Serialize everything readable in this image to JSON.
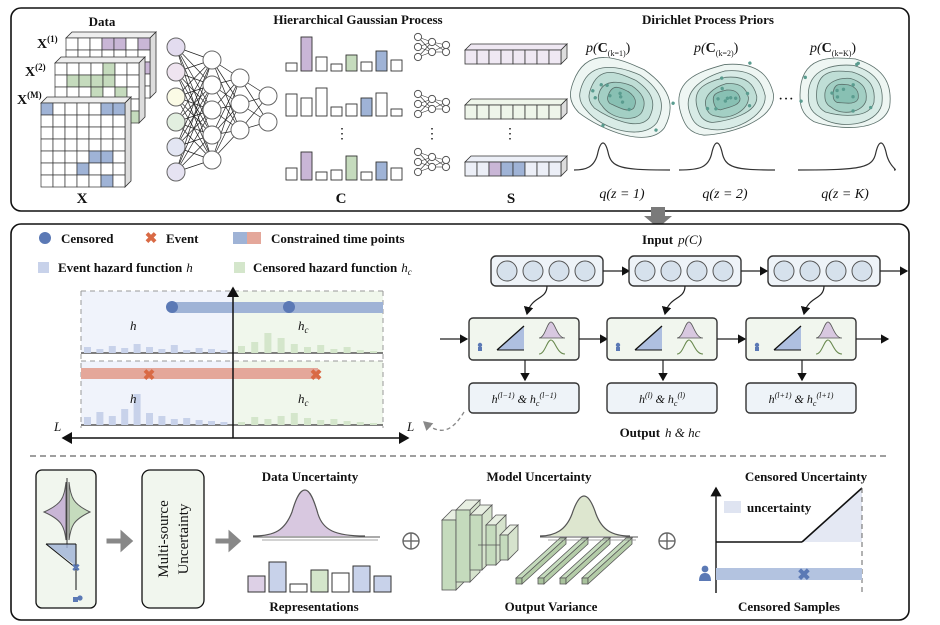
{
  "top": {
    "data_title": "Data",
    "x1": "X",
    "x1_sup": "(1)",
    "x2": "X",
    "x2_sup": "(2)",
    "xm": "X",
    "xm_sup": "(M)",
    "x_bottom": "X",
    "hgp_title": "Hierarchical Gaussian Process",
    "c_label": "C",
    "s_label": "S",
    "dots": "⋮",
    "dpp_title": "Dirichlet Process Priors",
    "p1_pre": "p(",
    "p1_c": "C",
    "p1_sub": "(k=1)",
    "p1_post": ")",
    "p2_pre": "p(",
    "p2_c": "C",
    "p2_sub": "(k=2)",
    "p2_post": ")",
    "pk_pre": "p(",
    "pk_c": "C",
    "pk_sub": "(k=K)",
    "pk_post": ")",
    "hdots": "···",
    "q1": "q(z = 1)",
    "q2": "q(z = 2)",
    "qk": "q(z = K)"
  },
  "middle": {
    "legend_censored": "Censored",
    "legend_event": "Event",
    "legend_constrained": "Constrained time points",
    "legend_event_hazard": "Event hazard function",
    "legend_event_hazard_sym": "h",
    "legend_censored_hazard": "Censored hazard function",
    "legend_censored_hazard_sym": "h",
    "legend_censored_hazard_sub": "c",
    "plot_h_top": "h",
    "plot_hc_top": "h",
    "plot_hc_top_sub": "c",
    "plot_h_bottom": "h",
    "plot_hc_bottom": "h",
    "plot_hc_bottom_sub": "c",
    "axis_left": "L",
    "axis_right": "L",
    "input_label": "Input",
    "input_expr": "p(C)",
    "out_prev": "h(l−1) & hc(l−1)",
    "out_curr": "h(l) & hc(l)",
    "out_next": "h(l+1) & hc(l+1)",
    "output_label": "Output",
    "output_expr": "h & hc"
  },
  "bottom": {
    "multi_source_line1": "Multi-source",
    "multi_source_line2": "Uncertainty",
    "data_uncertainty": "Data Uncertainty",
    "representations": "Representations",
    "model_uncertainty": "Model Uncertainty",
    "output_variance": "Output Variance",
    "censored_uncertainty": "Censored Uncertainty",
    "uncertainty_legend": "uncertainty",
    "censored_samples": "Censored Samples"
  },
  "colors": {
    "purple": "#c9b6d6",
    "blue": "#9fb3d6",
    "green": "#c5dbbd",
    "red": "#d8836b",
    "dark_blue": "#5b79b5",
    "teal": "#8fc3b9",
    "event_x": "#d96a45"
  }
}
